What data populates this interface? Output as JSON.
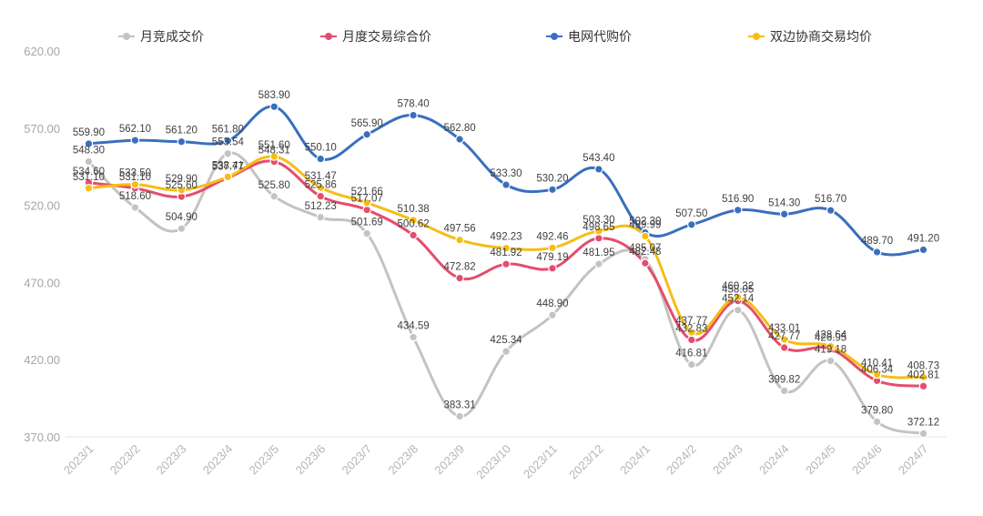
{
  "chart_data": {
    "type": "line",
    "title": "",
    "xlabel": "",
    "ylabel": "",
    "ylim": [
      370,
      620
    ],
    "yticks": [
      "370.00",
      "420.00",
      "470.00",
      "520.00",
      "570.00",
      "620.00"
    ],
    "categories": [
      "2023/1",
      "2023/2",
      "2023/3",
      "2023/4",
      "2023/5",
      "2023/6",
      "2023/7",
      "2023/8",
      "2023/9",
      "2023/10",
      "2023/11",
      "2023/12",
      "2024/1",
      "2024/2",
      "2024/3",
      "2024/4",
      "2024/5",
      "2024/6",
      "2024/7"
    ],
    "legend_position": "top",
    "series": [
      {
        "name": "月竞成交价",
        "color": "#c3c3c3",
        "values": [
          548.3,
          518.6,
          504.9,
          553.54,
          525.8,
          512.23,
          501.69,
          434.59,
          383.31,
          425.34,
          448.9,
          481.95,
          485.07,
          416.81,
          452.14,
          399.82,
          419.18,
          379.8,
          372.12
        ],
        "labels": [
          "548.30",
          "518.60",
          "504.90",
          "553.54",
          "525.80",
          "512.23",
          "501.69",
          "434.59",
          "383.31",
          "425.34",
          "448.90",
          "481.95",
          "485.07",
          "416.81",
          "452.14",
          "399.82",
          "419.18",
          "379.80",
          "372.12"
        ]
      },
      {
        "name": "月度交易综合价",
        "color": "#e54d6c",
        "values": [
          534.6,
          531.1,
          525.6,
          537.77,
          548.31,
          525.86,
          517.07,
          500.62,
          472.82,
          481.92,
          479.19,
          498.65,
          482.48,
          432.83,
          458.05,
          427.77,
          426.95,
          406.34,
          402.81
        ],
        "labels": [
          "534.60",
          "531.10",
          "525.60",
          "537.77",
          "548.31",
          "525.86",
          "517.07",
          "500.62",
          "472.82",
          "481.92",
          "479.19",
          "498.65",
          "482.48",
          "432.83",
          "458.05",
          "427.77",
          "426.95",
          "406.34",
          "402.81"
        ]
      },
      {
        "name": "电网代购价",
        "color": "#3a6fbd",
        "values": [
          559.9,
          562.1,
          561.2,
          561.8,
          583.9,
          550.1,
          565.9,
          578.4,
          562.8,
          533.3,
          530.2,
          543.4,
          502.3,
          507.5,
          516.9,
          514.3,
          516.7,
          489.7,
          491.2
        ],
        "labels": [
          "559.90",
          "562.10",
          "561.20",
          "561.80",
          "583.90",
          "550.10",
          "565.90",
          "578.40",
          "562.80",
          "533.30",
          "530.20",
          "543.40",
          "502.30",
          "507.50",
          "516.90",
          "514.30",
          "516.70",
          "489.70",
          "491.20"
        ]
      },
      {
        "name": "双边协商交易均价",
        "color": "#f6bd16",
        "values": [
          531.1,
          533.5,
          529.9,
          538.41,
          551.6,
          531.47,
          521.66,
          510.38,
          497.56,
          492.23,
          492.46,
          503.3,
          499.99,
          437.77,
          460.32,
          433.01,
          428.64,
          410.41,
          408.73
        ],
        "labels": [
          "531.10",
          "533.50",
          "529.90",
          "538.41",
          "551.60",
          "531.47",
          "521.66",
          "510.38",
          "497.56",
          "492.23",
          "492.46",
          "503.30",
          "499.99",
          "437.77",
          "460.32",
          "433.01",
          "428.64",
          "410.41",
          "408.73"
        ]
      }
    ]
  }
}
